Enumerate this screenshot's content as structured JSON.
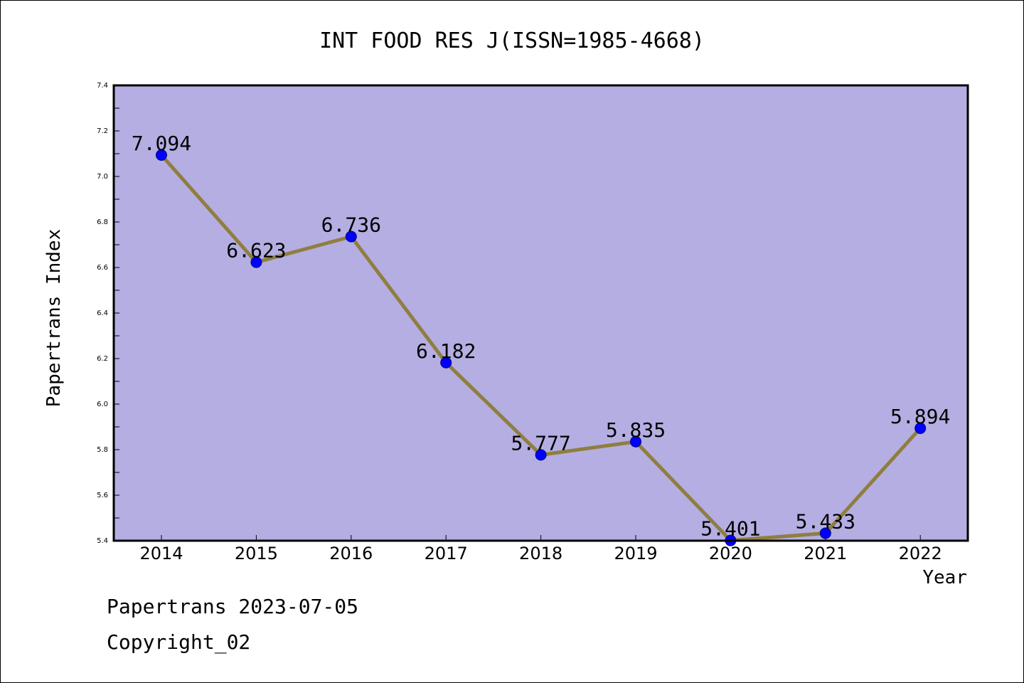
{
  "chart_data": {
    "type": "line",
    "title": "INT FOOD RES J(ISSN=1985-4668)",
    "xlabel": "Year",
    "ylabel": "Papertrans Index",
    "categories": [
      "2014",
      "2015",
      "2016",
      "2017",
      "2018",
      "2019",
      "2020",
      "2021",
      "2022"
    ],
    "values": [
      7.094,
      6.623,
      6.736,
      6.182,
      5.777,
      5.835,
      5.401,
      5.433,
      5.894
    ],
    "data_labels": [
      "7.094",
      "6.623",
      "6.736",
      "6.182",
      "5.777",
      "5.835",
      "5.401",
      "5.433",
      "5.894"
    ],
    "ylim": [
      5.4,
      7.4
    ],
    "yticks": [
      "5.4",
      "5.6",
      "5.8",
      "6.0",
      "6.2",
      "6.4",
      "6.6",
      "6.8",
      "7.0",
      "7.2",
      "7.4"
    ],
    "grid": false,
    "legend": "none",
    "colors": {
      "plot_background": "#b4aee2",
      "line": "#8f7e3f",
      "marker": "#0000ff"
    }
  },
  "footer": {
    "date_line": "Papertrans 2023-07-05",
    "copyright": "Copyright_02"
  }
}
